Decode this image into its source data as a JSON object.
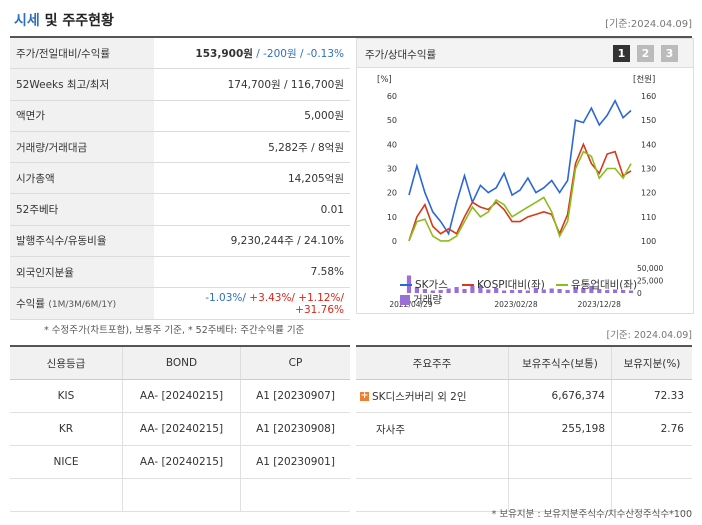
{
  "header": {
    "title_accent": "시세",
    "title_rest": "및 주주현황",
    "date": "[기준:2024.04.09]"
  },
  "quote_rows": [
    {
      "key": "주가/전일대비/수익률",
      "price": "153,900원",
      "sep1": " / ",
      "chg": "-200원",
      "sep2": " / ",
      "pct": "-0.13%"
    },
    {
      "key": "52Weeks 최고/최저",
      "value": "174,700원 / 116,700원"
    },
    {
      "key": "액면가",
      "value": "5,000원"
    },
    {
      "key": "거래량/거래대금",
      "value": "5,282주 / 8억원"
    },
    {
      "key": "시가총액",
      "value": "14,205억원"
    },
    {
      "key": "52주베타",
      "value": "0.01"
    },
    {
      "key": "발행주식수/유동비율",
      "value": "9,230,244주 / 24.10%"
    },
    {
      "key": "외국인지분율",
      "value": "7.58%"
    }
  ],
  "returns_row": {
    "key": "수익률",
    "key_sub": "(1M/3M/6M/1Y)",
    "r1": "-1.03%/",
    "r2": " +3.43%/",
    "r3": " +1.12%/",
    "r4": " +31.76%"
  },
  "chart_panel": {
    "title": "주가/상대수익률",
    "tabs": [
      "1",
      "2",
      "3"
    ],
    "tab_colors": [
      "#333333",
      "#bbbbbb",
      "#bbbbbb"
    ],
    "left_axis_label": "[%]",
    "right_axis_label": "[천원]",
    "volume_legend": "거래량",
    "colors": {
      "sk": "#2b67d6",
      "kospi": "#d6391b",
      "industry": "#8cbd1c",
      "volume": "#9b6fd8"
    }
  },
  "chart_data": {
    "type": "line",
    "x_tick_labels": [
      "2022/04/29",
      "2023/02/28",
      "2023/12/28"
    ],
    "left_ticks": [
      "60",
      "50",
      "40",
      "30",
      "20",
      "10",
      "0"
    ],
    "right_ticks": [
      "160",
      "150",
      "140",
      "130",
      "120",
      "110",
      "100"
    ],
    "volume_ticks": [
      "50,000",
      "25,000",
      "0"
    ],
    "ylim_left": [
      -5,
      60
    ],
    "series": [
      {
        "name": "SK가스",
        "values": [
          19,
          31,
          20,
          12,
          8,
          3,
          16,
          27,
          16,
          23,
          20,
          22,
          28,
          19,
          21,
          26,
          20,
          22,
          25,
          20,
          25,
          50,
          49,
          55,
          48,
          52,
          58,
          51,
          54
        ]
      },
      {
        "name": "KOSPI대비(좌)",
        "values": [
          0,
          10,
          15,
          6,
          3,
          5,
          3,
          10,
          16,
          14,
          13,
          16,
          13,
          8,
          8,
          10,
          11,
          12,
          11,
          3,
          11,
          32,
          40,
          32,
          28,
          36,
          37,
          27,
          29
        ]
      },
      {
        "name": "유통업대비(좌)",
        "values": [
          0,
          8,
          9,
          2,
          0,
          0,
          2,
          8,
          14,
          10,
          12,
          17,
          15,
          10,
          12,
          14,
          16,
          18,
          12,
          2,
          8,
          30,
          37,
          35,
          26,
          30,
          30,
          26,
          32
        ]
      }
    ],
    "volume": [
      35000,
      12000,
      8000,
      5000,
      6000,
      9000,
      12000,
      8000,
      14000,
      15000,
      7000,
      10000,
      5000,
      6000,
      6000,
      5000,
      10000,
      7000,
      9000,
      8000,
      6000,
      12000,
      10000,
      14000,
      8000,
      6000,
      7000,
      6000,
      5000
    ]
  },
  "notes": {
    "left": "* 수정주가(차트포함), 보통주 기준, * 52주베타: 주간수익률 기준",
    "right": "[기준: 2024.04.09]",
    "bottom": "* 보유지분 : 보유지분주식수/지수산정주식수*100"
  },
  "credit_table": {
    "headers": [
      "신용등급",
      "BOND",
      "CP"
    ],
    "rows": [
      [
        "KIS",
        "AA-  [20240215]",
        "A1  [20230907]"
      ],
      [
        "KR",
        "AA-  [20240215]",
        "A1  [20230908]"
      ],
      [
        "NICE",
        "AA-  [20240215]",
        "A1  [20230901]"
      ],
      [
        "",
        "",
        ""
      ]
    ]
  },
  "holder_table": {
    "headers": [
      "주요주주",
      "보유주식수(보통)",
      "보유지분(%)"
    ],
    "rows": [
      [
        "SK디스커버리 외 2인",
        "6,676,374",
        "72.33"
      ],
      [
        "자사주",
        "255,198",
        "2.76"
      ],
      [
        "",
        "",
        ""
      ],
      [
        "",
        "",
        ""
      ]
    ]
  }
}
